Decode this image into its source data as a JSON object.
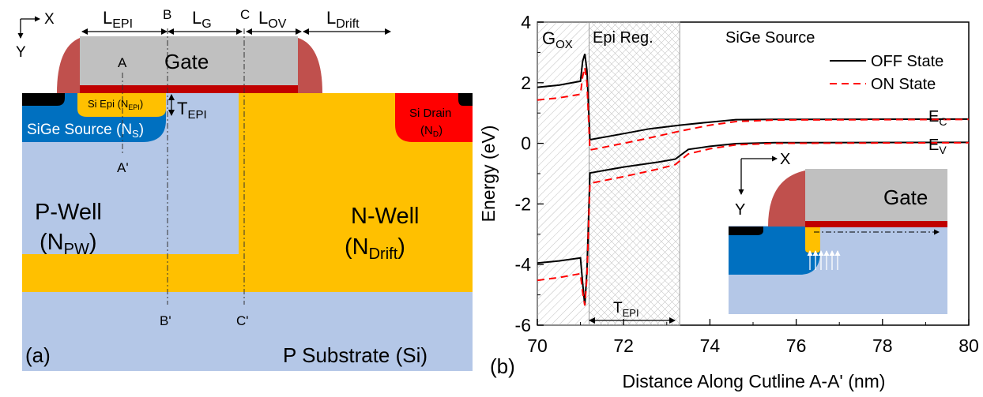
{
  "panel_a": {
    "label": "(a)",
    "axes": {
      "x": "X",
      "y": "Y"
    },
    "dimensions": {
      "l_epi_main": "L",
      "l_epi_sub": "EPI",
      "l_g_main": "L",
      "l_g_sub": "G",
      "l_ov_main": "L",
      "l_ov_sub": "OV",
      "l_drift_main": "L",
      "l_drift_sub": "Drift",
      "cut_b": "B",
      "cut_c": "C"
    },
    "gate": "Gate",
    "cut_a": "A",
    "cut_a_prime": "A'",
    "cut_b_prime": "B'",
    "cut_c_prime": "C'",
    "si_epi_main": "Si Epi (N",
    "si_epi_sub": "EPI",
    "si_epi_close": ")",
    "t_epi_main": "T",
    "t_epi_sub": "EPI",
    "sige_source_main": "SiGe Source (N",
    "sige_source_sub": "S",
    "sige_source_close": ")",
    "si_drain_line1": "Si Drain",
    "si_drain_open": "(N",
    "si_drain_sub": "D",
    "si_drain_close": ")",
    "p_well_line1": "P-Well",
    "p_well_open": "(N",
    "p_well_sub": "PW",
    "p_well_close": ")",
    "n_well_line1": "N-Well",
    "n_well_open": "(N",
    "n_well_sub": "Drift",
    "n_well_close": ")",
    "substrate": "P Substrate (Si)",
    "colors": {
      "gate": "#c0c0c0",
      "spacer": "#c0504d",
      "gate_oxide": "#c00000",
      "sige_source": "#0070c0",
      "si_epi": "#ffc000",
      "n_well": "#ffc000",
      "p_well": "#b4c7e7",
      "si_drain": "#ff0000",
      "contact": "#000000"
    }
  },
  "panel_b": {
    "label": "(b)",
    "region_gox_main": "G",
    "region_gox_sub": "OX",
    "region_epi": "Epi Reg.",
    "region_sige": "SiGe Source",
    "t_epi_main": "T",
    "t_epi_sub": "EPI",
    "ec_main": "E",
    "ec_sub": "C",
    "ev_main": "E",
    "ev_sub": "V",
    "inset": {
      "x": "X",
      "y": "Y",
      "gate": "Gate"
    }
  },
  "chart_data": {
    "type": "line",
    "xlabel": "Distance Along Cutline A-A' (nm)",
    "ylabel": "Energy (eV)",
    "xlim": [
      70,
      80
    ],
    "ylim": [
      -6,
      4
    ],
    "xticks": [
      "70",
      "72",
      "74",
      "76",
      "78",
      "80"
    ],
    "yticks": [
      "4",
      "2",
      "0",
      "-2",
      "-4",
      "-6"
    ],
    "legend_position": "top-right",
    "series": [
      {
        "name": "OFF State",
        "color": "#000000",
        "dash": "solid",
        "curves": [
          {
            "band": "EC",
            "points": [
              [
                70,
                1.85
              ],
              [
                70.5,
                1.92
              ],
              [
                71.0,
                2.05
              ],
              [
                71.05,
                2.7
              ],
              [
                71.1,
                2.95
              ],
              [
                71.15,
                2.4
              ],
              [
                71.22,
                0.12
              ],
              [
                72.0,
                0.32
              ],
              [
                72.6,
                0.48
              ],
              [
                73.3,
                0.6
              ],
              [
                74.0,
                0.7
              ],
              [
                74.6,
                0.78
              ],
              [
                75.5,
                0.79
              ],
              [
                80,
                0.8
              ]
            ]
          },
          {
            "band": "EV",
            "points": [
              [
                70,
                -3.95
              ],
              [
                70.5,
                -3.88
              ],
              [
                71.0,
                -3.78
              ],
              [
                71.05,
                -4.6
              ],
              [
                71.1,
                -5.35
              ],
              [
                71.15,
                -4.2
              ],
              [
                71.22,
                -0.98
              ],
              [
                72.0,
                -0.78
              ],
              [
                72.8,
                -0.62
              ],
              [
                73.2,
                -0.52
              ],
              [
                73.5,
                -0.2
              ],
              [
                74.0,
                -0.1
              ],
              [
                74.6,
                -0.01
              ],
              [
                75.5,
                0.02
              ],
              [
                80,
                0.03
              ]
            ]
          }
        ]
      },
      {
        "name": "ON State",
        "color": "#ff0000",
        "dash": "dashed",
        "curves": [
          {
            "band": "EC",
            "points": [
              [
                70,
                1.43
              ],
              [
                70.5,
                1.5
              ],
              [
                71.0,
                1.62
              ],
              [
                71.05,
                2.2
              ],
              [
                71.1,
                2.5
              ],
              [
                71.15,
                2.0
              ],
              [
                71.22,
                -0.22
              ],
              [
                72.0,
                0.0
              ],
              [
                72.6,
                0.18
              ],
              [
                73.3,
                0.4
              ],
              [
                74.0,
                0.6
              ],
              [
                74.6,
                0.72
              ],
              [
                75.5,
                0.77
              ],
              [
                80,
                0.79
              ]
            ]
          },
          {
            "band": "EV",
            "points": [
              [
                70,
                -4.52
              ],
              [
                70.5,
                -4.43
              ],
              [
                71.0,
                -4.3
              ],
              [
                71.05,
                -4.9
              ],
              [
                71.1,
                -5.35
              ],
              [
                71.15,
                -4.4
              ],
              [
                71.22,
                -1.32
              ],
              [
                72.0,
                -1.1
              ],
              [
                72.8,
                -0.85
              ],
              [
                73.2,
                -0.7
              ],
              [
                73.5,
                -0.35
              ],
              [
                74.0,
                -0.18
              ],
              [
                74.6,
                -0.05
              ],
              [
                75.5,
                0.0
              ],
              [
                80,
                0.02
              ]
            ]
          }
        ]
      }
    ],
    "regions": [
      {
        "name": "GOX",
        "x": [
          70,
          71.2
        ],
        "hatch": "diagonal"
      },
      {
        "name": "Epi Reg.",
        "x": [
          71.2,
          73.3
        ],
        "hatch": "cross"
      }
    ]
  }
}
